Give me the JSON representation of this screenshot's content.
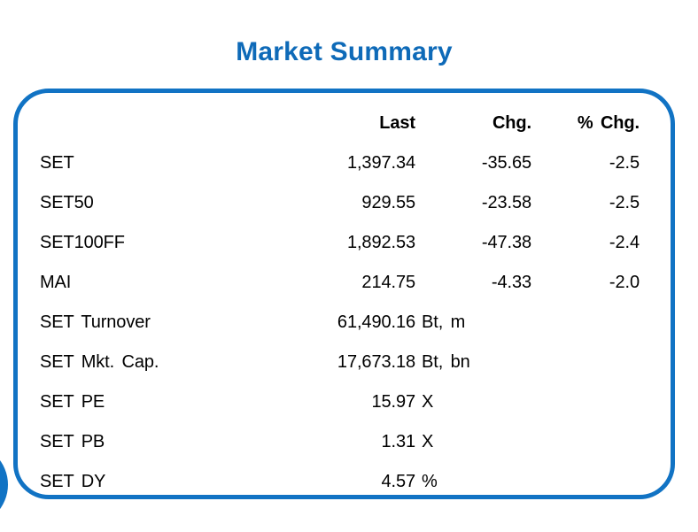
{
  "title": "Market Summary",
  "colors": {
    "title_blue": "#0e6ab8",
    "panel_border_blue": "#1173c4",
    "corner_circle_blue": "#1173c4",
    "text": "#000000"
  },
  "table": {
    "headers": {
      "last": "Last",
      "chg": "Chg.",
      "pct_chg": "% Chg."
    },
    "rows": [
      {
        "label": "SET",
        "last": "1,397.34",
        "unit": "",
        "chg": "-35.65",
        "pct_chg": "-2.5"
      },
      {
        "label": "SET50",
        "last": "929.55",
        "unit": "",
        "chg": "-23.58",
        "pct_chg": "-2.5"
      },
      {
        "label": "SET100FF",
        "last": "1,892.53",
        "unit": "",
        "chg": "-47.38",
        "pct_chg": "-2.4"
      },
      {
        "label": "MAI",
        "last": "214.75",
        "unit": "",
        "chg": "-4.33",
        "pct_chg": "-2.0"
      },
      {
        "label": "SET Turnover",
        "last": "61,490.16",
        "unit": "Bt, m",
        "chg": "",
        "pct_chg": ""
      },
      {
        "label": "SET Mkt. Cap.",
        "last": "17,673.18",
        "unit": "Bt, bn",
        "chg": "",
        "pct_chg": ""
      },
      {
        "label": "SET PE",
        "last": "15.97",
        "unit": "X",
        "chg": "",
        "pct_chg": ""
      },
      {
        "label": "SET PB",
        "last": "1.31",
        "unit": "X",
        "chg": "",
        "pct_chg": ""
      },
      {
        "label": "SET DY",
        "last": "4.57",
        "unit": "%",
        "chg": "",
        "pct_chg": ""
      }
    ]
  }
}
